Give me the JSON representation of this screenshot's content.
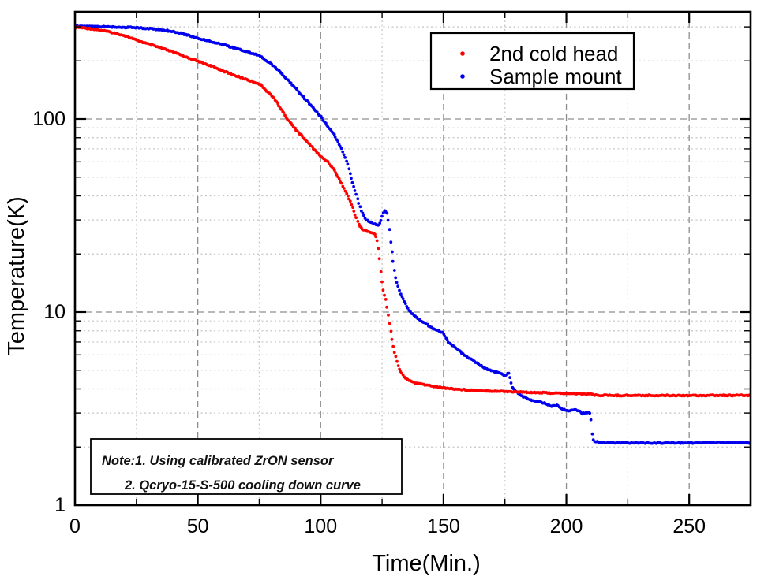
{
  "chart_data": {
    "type": "scatter",
    "title": "",
    "xlabel": "Time(Min.)",
    "ylabel": "Temperature(K)",
    "xlim": [
      0,
      275
    ],
    "ylim": [
      1,
      358
    ],
    "y_scale": "log",
    "x_axis": {
      "ticks": [
        0,
        50,
        100,
        150,
        200,
        250
      ],
      "minor_step": 25,
      "major_step": 50
    },
    "y_axis": {
      "ticks": [
        1,
        10,
        100
      ],
      "minor_ticks": "2-9 per decade"
    },
    "grid": {
      "style": "dashed",
      "major_color": "#8d8d8d",
      "minor_color": "#c4c4c4"
    },
    "legend_position": "inside-top-right",
    "sample_dt": 0.5,
    "annotation": {
      "line1": "Note:1. Using calibrated ZrON sensor",
      "line2": "2. Qcryo-15-S-500 cooling down curve"
    },
    "series": [
      {
        "name": "2nd cold head",
        "color": "#ff0000",
        "points": [
          [
            0,
            299
          ],
          [
            4,
            296
          ],
          [
            8,
            292
          ],
          [
            12,
            286
          ],
          [
            16,
            279
          ],
          [
            20,
            271
          ],
          [
            25,
            256
          ],
          [
            30,
            244
          ],
          [
            35,
            233
          ],
          [
            40,
            222
          ],
          [
            45,
            210
          ],
          [
            50,
            199
          ],
          [
            55,
            189
          ],
          [
            60,
            178
          ],
          [
            65,
            168
          ],
          [
            70,
            160
          ],
          [
            75,
            152
          ],
          [
            78,
            140
          ],
          [
            81,
            128
          ],
          [
            84,
            112
          ],
          [
            87,
            98
          ],
          [
            90,
            88
          ],
          [
            95,
            75
          ],
          [
            100,
            64
          ],
          [
            103,
            60
          ],
          [
            106,
            53
          ],
          [
            109,
            45
          ],
          [
            112,
            37.5
          ],
          [
            114,
            32
          ],
          [
            115.5,
            28.5
          ],
          [
            117,
            26.8
          ],
          [
            119,
            26.2
          ],
          [
            121,
            25.7
          ],
          [
            122.2,
            25.2
          ],
          [
            123.2,
            23.1
          ],
          [
            123.9,
            19.5
          ],
          [
            124.5,
            16.2
          ],
          [
            125.4,
            13.1
          ],
          [
            126.7,
            11.3
          ],
          [
            127.5,
            9.7
          ],
          [
            128.4,
            8.1
          ],
          [
            129.2,
            6.9
          ],
          [
            130.1,
            6.1
          ],
          [
            131.1,
            5.5
          ],
          [
            131.9,
            5.12
          ],
          [
            132.9,
            4.82
          ],
          [
            134.2,
            4.58
          ],
          [
            136,
            4.42
          ],
          [
            139,
            4.28
          ],
          [
            143,
            4.19
          ],
          [
            148.5,
            4.07
          ],
          [
            156,
            3.98
          ],
          [
            164,
            3.93
          ],
          [
            172,
            3.89
          ],
          [
            180,
            3.86
          ],
          [
            188,
            3.83
          ],
          [
            196,
            3.8
          ],
          [
            204,
            3.78
          ],
          [
            210,
            3.77
          ],
          [
            211.5,
            3.71
          ],
          [
            220,
            3.7
          ],
          [
            245,
            3.7
          ],
          [
            275,
            3.7
          ]
        ]
      },
      {
        "name": "Sample mount",
        "color": "#0000ee",
        "points": [
          [
            0,
            302
          ],
          [
            10,
            301
          ],
          [
            18,
            299
          ],
          [
            25,
            297
          ],
          [
            30,
            294
          ],
          [
            35,
            290
          ],
          [
            40,
            284
          ],
          [
            45,
            274
          ],
          [
            50,
            262
          ],
          [
            55,
            253
          ],
          [
            60,
            243
          ],
          [
            65,
            233
          ],
          [
            70,
            223
          ],
          [
            75,
            213
          ],
          [
            79,
            196
          ],
          [
            83,
            178
          ],
          [
            87,
            158
          ],
          [
            91,
            138
          ],
          [
            95,
            122
          ],
          [
            98,
            110
          ],
          [
            100,
            103
          ],
          [
            103,
            91
          ],
          [
            106,
            81
          ],
          [
            109,
            68
          ],
          [
            111,
            58
          ],
          [
            113,
            47
          ],
          [
            115,
            38.5
          ],
          [
            116.5,
            33.5
          ],
          [
            118,
            30.5
          ],
          [
            119.5,
            29.4
          ],
          [
            121,
            28.9
          ],
          [
            122.8,
            28.3
          ],
          [
            123.6,
            28
          ],
          [
            124.6,
            30.2
          ],
          [
            125.6,
            32.9
          ],
          [
            126.3,
            33.6
          ],
          [
            127.1,
            32.4
          ],
          [
            127.9,
            27.5
          ],
          [
            128.4,
            23.5
          ],
          [
            129,
            20.6
          ],
          [
            129.8,
            17
          ],
          [
            130.5,
            15
          ],
          [
            131.4,
            13.7
          ],
          [
            132.3,
            12.5
          ],
          [
            133.5,
            11.7
          ],
          [
            135,
            10.7
          ],
          [
            136.7,
            9.95
          ],
          [
            139,
            9.4
          ],
          [
            141,
            8.95
          ],
          [
            143.7,
            8.55
          ],
          [
            146.3,
            8.15
          ],
          [
            149.5,
            7.85
          ],
          [
            152,
            7
          ],
          [
            155.3,
            6.45
          ],
          [
            159.2,
            5.9
          ],
          [
            163,
            5.5
          ],
          [
            166.6,
            5.15
          ],
          [
            170.4,
            4.92
          ],
          [
            173.6,
            4.8
          ],
          [
            175,
            4.68
          ],
          [
            176.4,
            4.88
          ],
          [
            177.9,
            4.1
          ],
          [
            179.5,
            3.88
          ],
          [
            181.7,
            3.68
          ],
          [
            184.3,
            3.56
          ],
          [
            187.2,
            3.45
          ],
          [
            189.8,
            3.42
          ],
          [
            192.3,
            3.33
          ],
          [
            193.9,
            3.25
          ],
          [
            196.2,
            3.3
          ],
          [
            197.8,
            3.18
          ],
          [
            200.5,
            3.07
          ],
          [
            202.5,
            3.12
          ],
          [
            204.7,
            3.1
          ],
          [
            206.5,
            2.98
          ],
          [
            208,
            3.03
          ],
          [
            209.8,
            2.99
          ],
          [
            210.6,
            2.24
          ],
          [
            211.4,
            2.13
          ],
          [
            215,
            2.11
          ],
          [
            230,
            2.1
          ],
          [
            250,
            2.1
          ],
          [
            262,
            2.11
          ],
          [
            275,
            2.1
          ]
        ]
      }
    ]
  }
}
